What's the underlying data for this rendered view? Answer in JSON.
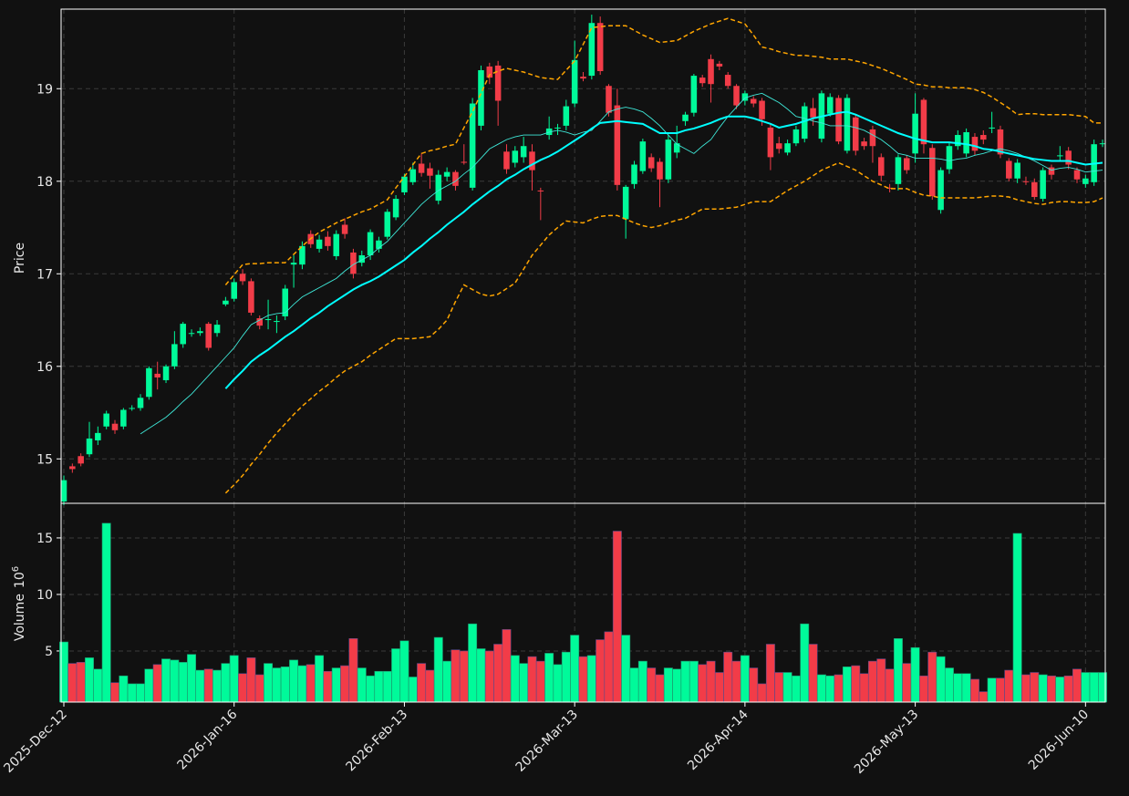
{
  "chart_data": {
    "type": "candlestick",
    "grid": true,
    "up_color": "#00fa9a",
    "down_color": "#f23c48",
    "ylabel": "Price",
    "volume_label": "Volume",
    "volume_unit": "10",
    "volume_unit_exponent": "6",
    "ylim": [
      14.52,
      19.86
    ],
    "yticks": [
      15,
      16,
      17,
      18,
      19
    ],
    "volume_ylim": [
      0.48,
      18.06
    ],
    "volume_yticks": [
      5,
      10,
      15
    ],
    "categories": [
      "2025-Dec-12",
      null,
      null,
      null,
      null,
      null,
      null,
      null,
      null,
      null,
      null,
      null,
      null,
      null,
      null,
      null,
      null,
      null,
      null,
      null,
      "2026-Jan-16",
      null,
      null,
      null,
      null,
      null,
      null,
      null,
      null,
      null,
      null,
      null,
      null,
      null,
      null,
      null,
      null,
      null,
      null,
      null,
      "2026-Feb-13",
      null,
      null,
      null,
      null,
      null,
      null,
      null,
      null,
      null,
      null,
      null,
      null,
      null,
      null,
      null,
      null,
      null,
      null,
      null,
      "2026-Mar-13",
      null,
      null,
      null,
      null,
      null,
      null,
      null,
      null,
      null,
      null,
      null,
      null,
      null,
      null,
      null,
      null,
      null,
      null,
      null,
      "2026-Apr-14",
      null,
      null,
      null,
      null,
      null,
      null,
      null,
      null,
      null,
      null,
      null,
      null,
      null,
      null,
      null,
      null,
      null,
      null,
      null,
      "2026-May-13",
      null,
      null,
      null,
      null,
      null,
      null,
      null,
      null,
      null,
      null,
      null,
      null,
      null,
      null,
      null,
      null,
      null,
      null,
      null,
      "2026-Jun-10",
      null,
      null
    ],
    "open": [
      14.54,
      14.92,
      15.03,
      15.05,
      15.2,
      15.35,
      15.38,
      15.35,
      15.54,
      15.55,
      15.67,
      15.92,
      15.85,
      16.0,
      16.24,
      16.35,
      16.36,
      16.46,
      16.36,
      16.67,
      16.73,
      17.0,
      16.92,
      16.52,
      16.5,
      16.48,
      16.54,
      17.1,
      17.1,
      17.43,
      17.27,
      17.4,
      17.19,
      17.53,
      17.23,
      17.12,
      17.2,
      17.27,
      17.4,
      17.61,
      17.88,
      17.99,
      18.19,
      18.14,
      17.79,
      18.05,
      18.1,
      18.21,
      17.93,
      18.6,
      19.24,
      19.25,
      18.32,
      18.2,
      18.26,
      18.32,
      17.9,
      18.5,
      18.57,
      18.6,
      18.84,
      19.13,
      19.14,
      19.71,
      19.03,
      18.82,
      17.59,
      17.97,
      18.11,
      18.26,
      18.21,
      18.02,
      18.31,
      18.65,
      18.74,
      19.12,
      19.32,
      19.27,
      19.15,
      19.03,
      18.87,
      18.89,
      18.87,
      18.58,
      18.41,
      18.31,
      18.41,
      18.46,
      18.79,
      18.46,
      18.73,
      18.9,
      18.33,
      18.69,
      18.43,
      18.56,
      18.26,
      17.93,
      17.97,
      18.25,
      18.3,
      18.88,
      18.36,
      17.69,
      18.13,
      18.38,
      18.3,
      18.48,
      18.5,
      18.57,
      18.56,
      18.22,
      18.03,
      18.0,
      17.99,
      17.81,
      18.15,
      18.27,
      18.33,
      18.12,
      17.97,
      17.99,
      18.4
    ],
    "high": [
      14.82,
      14.95,
      15.06,
      15.4,
      15.35,
      15.52,
      15.42,
      15.55,
      15.58,
      15.7,
      16.0,
      16.05,
      16.02,
      16.38,
      16.48,
      16.4,
      16.42,
      16.48,
      16.5,
      16.75,
      16.95,
      17.05,
      16.95,
      16.55,
      16.72,
      16.55,
      16.88,
      17.2,
      17.35,
      17.47,
      17.42,
      17.46,
      17.47,
      17.6,
      17.27,
      17.25,
      17.48,
      17.4,
      17.7,
      17.85,
      18.08,
      18.2,
      18.3,
      18.2,
      18.12,
      18.15,
      18.12,
      18.4,
      18.9,
      19.25,
      19.28,
      19.3,
      18.4,
      18.38,
      18.48,
      18.4,
      17.93,
      18.7,
      18.62,
      18.88,
      19.52,
      19.18,
      19.8,
      19.78,
      19.05,
      19.0,
      17.96,
      18.22,
      18.46,
      18.3,
      18.25,
      18.5,
      18.6,
      18.75,
      19.16,
      19.15,
      19.37,
      19.3,
      19.18,
      19.05,
      18.98,
      18.92,
      18.9,
      18.62,
      18.48,
      18.45,
      18.6,
      18.85,
      18.9,
      18.98,
      18.95,
      18.93,
      18.94,
      18.72,
      18.47,
      18.6,
      18.3,
      17.97,
      18.29,
      18.28,
      18.95,
      18.9,
      18.4,
      18.15,
      18.42,
      18.55,
      18.57,
      18.52,
      18.55,
      18.75,
      18.6,
      18.25,
      18.24,
      18.05,
      18.03,
      18.15,
      18.18,
      18.38,
      18.37,
      18.15,
      18.07,
      18.45,
      18.45
    ],
    "low": [
      14.5,
      14.85,
      14.92,
      15.02,
      15.15,
      15.32,
      15.27,
      15.32,
      15.52,
      15.52,
      15.64,
      15.75,
      15.82,
      15.97,
      16.2,
      16.32,
      16.33,
      16.17,
      16.32,
      16.65,
      16.7,
      16.88,
      16.55,
      16.4,
      16.4,
      16.36,
      16.5,
      16.85,
      17.05,
      17.28,
      17.23,
      17.25,
      17.15,
      17.38,
      16.95,
      17.08,
      17.15,
      17.23,
      17.37,
      17.58,
      17.85,
      17.96,
      18.05,
      17.92,
      17.75,
      18.0,
      17.9,
      18.18,
      17.9,
      18.55,
      19.05,
      18.6,
      18.08,
      18.15,
      18.2,
      17.9,
      17.58,
      18.45,
      18.5,
      18.55,
      18.8,
      19.08,
      19.1,
      19.15,
      18.7,
      17.9,
      17.38,
      17.92,
      18.08,
      18.1,
      17.72,
      17.98,
      18.25,
      18.6,
      18.7,
      19.02,
      18.85,
      19.2,
      19.0,
      18.78,
      18.82,
      18.8,
      18.6,
      18.12,
      18.3,
      18.28,
      18.38,
      18.42,
      18.6,
      18.42,
      18.7,
      18.4,
      18.3,
      18.28,
      18.34,
      18.2,
      18.0,
      17.88,
      17.9,
      18.08,
      18.2,
      18.3,
      17.8,
      17.65,
      18.08,
      18.34,
      18.26,
      18.28,
      18.4,
      18.52,
      18.25,
      18.0,
      17.98,
      17.96,
      17.8,
      17.78,
      18.02,
      18.22,
      18.13,
      17.98,
      17.93,
      17.95,
      18.37
    ],
    "close": [
      14.77,
      14.89,
      14.95,
      15.22,
      15.28,
      15.49,
      15.31,
      15.53,
      15.55,
      15.66,
      15.98,
      15.88,
      16.0,
      16.24,
      16.46,
      16.36,
      16.38,
      16.2,
      16.45,
      16.71,
      16.91,
      16.92,
      16.58,
      16.44,
      16.51,
      16.49,
      16.84,
      17.12,
      17.3,
      17.32,
      17.37,
      17.3,
      17.43,
      17.43,
      17.0,
      17.2,
      17.45,
      17.36,
      17.67,
      17.81,
      18.05,
      18.13,
      18.09,
      18.06,
      18.07,
      18.1,
      17.95,
      18.2,
      18.84,
      19.2,
      19.12,
      18.87,
      18.13,
      18.33,
      18.38,
      18.12,
      17.89,
      18.57,
      18.58,
      18.81,
      19.31,
      19.11,
      19.71,
      19.19,
      18.74,
      17.96,
      17.94,
      18.18,
      18.43,
      18.14,
      18.02,
      18.45,
      18.41,
      18.72,
      19.14,
      19.06,
      19.05,
      19.24,
      19.03,
      18.82,
      18.95,
      18.84,
      18.67,
      18.26,
      18.35,
      18.41,
      18.56,
      18.81,
      18.69,
      18.95,
      18.91,
      18.43,
      18.9,
      18.33,
      18.38,
      18.38,
      18.06,
      17.92,
      18.26,
      18.12,
      18.73,
      18.4,
      17.84,
      18.12,
      18.38,
      18.5,
      18.53,
      18.33,
      18.45,
      18.58,
      18.29,
      18.03,
      18.2,
      17.99,
      17.83,
      18.12,
      18.07,
      18.28,
      18.18,
      18.02,
      18.03,
      18.4,
      18.41
    ],
    "volume": [
      5.8,
      3.9,
      4.0,
      4.4,
      3.4,
      16.3,
      2.2,
      2.8,
      2.1,
      2.1,
      3.4,
      3.8,
      4.3,
      4.2,
      4.0,
      4.7,
      3.3,
      3.4,
      3.3,
      3.9,
      4.6,
      3.0,
      4.4,
      2.9,
      3.9,
      3.5,
      3.6,
      4.2,
      3.7,
      3.8,
      4.6,
      3.2,
      3.5,
      3.7,
      6.1,
      3.5,
      2.8,
      3.2,
      3.2,
      5.2,
      5.9,
      2.7,
      3.9,
      3.3,
      6.2,
      4.1,
      5.1,
      5.0,
      7.4,
      5.2,
      5.0,
      5.6,
      6.9,
      4.6,
      3.9,
      4.5,
      4.1,
      4.8,
      3.8,
      4.9,
      6.4,
      4.5,
      4.6,
      6.0,
      6.7,
      15.6,
      6.4,
      3.5,
      4.1,
      3.5,
      2.9,
      3.5,
      3.4,
      4.1,
      4.1,
      3.8,
      4.1,
      3.1,
      4.9,
      4.1,
      4.6,
      3.5,
      2.1,
      5.6,
      3.1,
      3.1,
      2.8,
      7.4,
      5.6,
      2.9,
      2.8,
      2.9,
      3.6,
      3.7,
      3.0,
      4.1,
      4.3,
      3.4,
      6.1,
      3.9,
      5.3,
      2.8,
      4.9,
      4.5,
      3.5,
      3.0,
      3.0,
      2.5,
      1.4,
      2.6,
      2.6,
      3.3,
      15.4,
      2.9,
      3.1,
      2.9,
      2.8,
      2.7,
      2.8,
      3.4,
      3.1,
      3.1,
      3.1
    ],
    "lines": [
      {
        "color": "#3ee8d8",
        "style": "solid",
        "values": [
          null,
          null,
          null,
          null,
          null,
          null,
          null,
          null,
          null,
          15.27,
          15.33,
          15.39,
          15.45,
          15.53,
          15.62,
          15.7,
          15.8,
          15.9,
          16.0,
          16.1,
          16.2,
          16.33,
          16.45,
          16.5,
          16.55,
          16.57,
          16.58,
          16.67,
          16.75,
          16.8,
          16.85,
          16.9,
          16.95,
          17.03,
          17.1,
          17.15,
          17.2,
          17.28,
          17.35,
          17.45,
          17.55,
          17.65,
          17.75,
          17.83,
          17.9,
          17.95,
          18.0,
          18.08,
          18.15,
          18.25,
          18.35,
          18.4,
          18.45,
          18.48,
          18.5,
          18.5,
          18.5,
          18.53,
          18.55,
          18.53,
          18.5,
          18.53,
          18.55,
          18.65,
          18.75,
          18.78,
          18.8,
          18.78,
          18.75,
          18.68,
          18.6,
          18.5,
          18.4,
          18.35,
          18.3,
          18.38,
          18.45,
          18.58,
          18.7,
          18.8,
          18.9,
          18.93,
          18.95,
          18.9,
          18.85,
          18.78,
          18.7,
          18.68,
          18.65,
          18.63,
          18.6,
          18.6,
          18.6,
          18.58,
          18.55,
          18.5,
          18.45,
          18.38,
          18.3,
          18.28,
          18.25,
          18.25,
          18.25,
          18.24,
          18.22,
          18.24,
          18.25,
          18.28,
          18.3,
          18.33,
          18.35,
          18.33,
          18.3,
          18.26,
          18.22,
          18.17,
          18.12,
          18.14,
          18.15,
          18.13,
          18.1,
          18.11,
          18.12
        ]
      },
      {
        "color": "#00ffff",
        "style": "bold",
        "values": [
          null,
          null,
          null,
          null,
          null,
          null,
          null,
          null,
          null,
          null,
          null,
          null,
          null,
          null,
          null,
          null,
          null,
          null,
          null,
          15.76,
          15.86,
          15.95,
          16.05,
          16.12,
          16.18,
          16.25,
          16.32,
          16.38,
          16.45,
          16.52,
          16.58,
          16.65,
          16.71,
          16.77,
          16.83,
          16.88,
          16.92,
          16.97,
          17.03,
          17.09,
          17.15,
          17.23,
          17.3,
          17.38,
          17.45,
          17.53,
          17.6,
          17.67,
          17.75,
          17.82,
          17.89,
          17.95,
          18.02,
          18.07,
          18.13,
          18.18,
          18.23,
          18.27,
          18.32,
          18.38,
          18.44,
          18.5,
          18.57,
          18.63,
          18.64,
          18.65,
          18.64,
          18.63,
          18.62,
          18.57,
          18.52,
          18.52,
          18.52,
          18.55,
          18.57,
          18.6,
          18.63,
          18.67,
          18.7,
          18.7,
          18.7,
          18.68,
          18.65,
          18.62,
          18.58,
          18.6,
          18.62,
          18.65,
          18.68,
          18.7,
          18.72,
          18.74,
          18.75,
          18.72,
          18.68,
          18.64,
          18.6,
          18.56,
          18.52,
          18.49,
          18.46,
          18.44,
          18.42,
          18.42,
          18.42,
          18.41,
          18.4,
          18.38,
          18.35,
          18.34,
          18.32,
          18.3,
          18.28,
          18.26,
          18.24,
          18.23,
          18.22,
          18.22,
          18.22,
          18.2,
          18.18,
          18.19,
          18.2
        ]
      },
      {
        "color": "#ffa500",
        "style": "dashed",
        "values": [
          null,
          null,
          null,
          null,
          null,
          null,
          null,
          null,
          null,
          null,
          null,
          null,
          null,
          null,
          null,
          null,
          null,
          null,
          null,
          16.88,
          16.99,
          17.1,
          17.11,
          17.11,
          17.12,
          17.12,
          17.12,
          17.21,
          17.3,
          17.38,
          17.45,
          17.5,
          17.55,
          17.59,
          17.63,
          17.67,
          17.7,
          17.75,
          17.8,
          17.93,
          18.05,
          18.18,
          18.3,
          18.33,
          18.35,
          18.38,
          18.4,
          18.58,
          18.75,
          18.95,
          19.15,
          19.19,
          19.22,
          19.2,
          19.18,
          19.15,
          19.12,
          19.11,
          19.1,
          19.2,
          19.3,
          19.48,
          19.66,
          19.67,
          19.68,
          19.68,
          19.68,
          19.63,
          19.58,
          19.54,
          19.5,
          19.51,
          19.52,
          19.57,
          19.62,
          19.66,
          19.7,
          19.73,
          19.76,
          19.73,
          19.7,
          19.58,
          19.45,
          19.43,
          19.4,
          19.38,
          19.36,
          19.36,
          19.35,
          19.34,
          19.32,
          19.32,
          19.32,
          19.3,
          19.28,
          19.25,
          19.22,
          19.18,
          19.14,
          19.1,
          19.05,
          19.04,
          19.02,
          19.02,
          19.01,
          19.01,
          19.01,
          18.99,
          18.96,
          18.91,
          18.85,
          18.79,
          18.72,
          18.73,
          18.73,
          18.72,
          18.72,
          18.72,
          18.72,
          18.71,
          18.7,
          18.63,
          18.63
        ]
      },
      {
        "color": "#ffa500",
        "style": "dashed",
        "values": [
          null,
          null,
          null,
          null,
          null,
          null,
          null,
          null,
          null,
          null,
          null,
          null,
          null,
          null,
          null,
          null,
          null,
          null,
          null,
          14.63,
          14.72,
          14.82,
          14.94,
          15.05,
          15.17,
          15.28,
          15.38,
          15.48,
          15.57,
          15.65,
          15.73,
          15.8,
          15.88,
          15.95,
          16.0,
          16.05,
          16.12,
          16.18,
          16.24,
          16.3,
          16.3,
          16.3,
          16.31,
          16.32,
          16.4,
          16.5,
          16.7,
          16.88,
          16.83,
          16.78,
          16.76,
          16.78,
          16.84,
          16.9,
          17.05,
          17.2,
          17.31,
          17.42,
          17.5,
          17.57,
          17.56,
          17.55,
          17.59,
          17.62,
          17.63,
          17.63,
          17.59,
          17.55,
          17.52,
          17.5,
          17.52,
          17.55,
          17.58,
          17.6,
          17.65,
          17.7,
          17.7,
          17.7,
          17.71,
          17.72,
          17.75,
          17.78,
          17.78,
          17.78,
          17.84,
          17.9,
          17.95,
          18.0,
          18.06,
          18.12,
          18.16,
          18.2,
          18.16,
          18.12,
          18.06,
          18.0,
          17.96,
          17.92,
          17.92,
          17.92,
          17.88,
          17.85,
          17.84,
          17.82,
          17.82,
          17.82,
          17.82,
          17.82,
          17.83,
          17.84,
          17.84,
          17.83,
          17.8,
          17.78,
          17.76,
          17.75,
          17.77,
          17.78,
          17.78,
          17.77,
          17.77,
          17.78,
          17.82
        ]
      }
    ]
  }
}
